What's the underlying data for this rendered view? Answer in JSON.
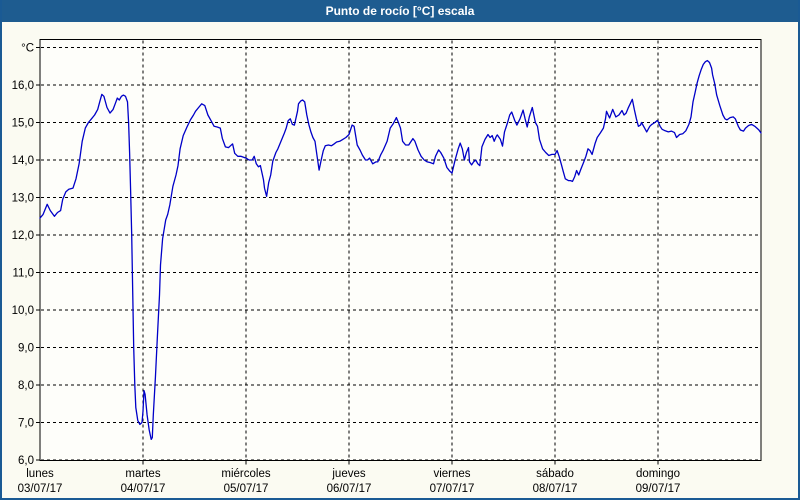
{
  "window": {
    "title": "Punto de rocío [°C] escala"
  },
  "colors": {
    "titlebar_bg": "#1e5c90",
    "frame_border": "#1a5a94",
    "chart_bg": "#fbfbf2",
    "plot_bg": "#fefefa",
    "grid": "#000000",
    "series_line": "#0000c8",
    "title_text": "#ffffff",
    "label_text": "#000000"
  },
  "chart_data": {
    "type": "line",
    "title": "Punto de rocío [°C] escala",
    "grid": "dashed",
    "legend": "none",
    "y_axis": {
      "unit_label": "°C",
      "min": 6.0,
      "max": 17.0,
      "tick_step": 1.0,
      "tick_labels": [
        "6,0",
        "7,0",
        "8,0",
        "9,0",
        "10,0",
        "11,0",
        "12,0",
        "13,0",
        "14,0",
        "15,0",
        "16,0",
        "°C"
      ]
    },
    "x_axis": {
      "unit": "days",
      "range_days": [
        0,
        7
      ],
      "day_labels": [
        {
          "name": "lunes",
          "date": "03/07/17"
        },
        {
          "name": "martes",
          "date": "04/07/17"
        },
        {
          "name": "miércoles",
          "date": "05/07/17"
        },
        {
          "name": "jueves",
          "date": "06/07/17"
        },
        {
          "name": "viernes",
          "date": "07/07/17"
        },
        {
          "name": "sábado",
          "date": "08/07/17"
        },
        {
          "name": "domingo",
          "date": "09/07/17"
        }
      ]
    },
    "series": [
      {
        "name": "Punto de rocío",
        "color": "#0000c8",
        "points": [
          [
            0,
            12.45
          ],
          [
            0.03,
            12.55
          ],
          [
            0.07,
            12.82
          ],
          [
            0.1,
            12.65
          ],
          [
            0.14,
            12.5
          ],
          [
            0.17,
            12.6
          ],
          [
            0.2,
            12.65
          ],
          [
            0.22,
            12.95
          ],
          [
            0.25,
            13.15
          ],
          [
            0.28,
            13.22
          ],
          [
            0.32,
            13.25
          ],
          [
            0.35,
            13.5
          ],
          [
            0.38,
            13.9
          ],
          [
            0.41,
            14.5
          ],
          [
            0.44,
            14.85
          ],
          [
            0.47,
            15.0
          ],
          [
            0.5,
            15.1
          ],
          [
            0.53,
            15.2
          ],
          [
            0.56,
            15.35
          ],
          [
            0.58,
            15.55
          ],
          [
            0.6,
            15.75
          ],
          [
            0.62,
            15.7
          ],
          [
            0.65,
            15.4
          ],
          [
            0.68,
            15.25
          ],
          [
            0.71,
            15.35
          ],
          [
            0.73,
            15.5
          ],
          [
            0.75,
            15.65
          ],
          [
            0.77,
            15.6
          ],
          [
            0.79,
            15.7
          ],
          [
            0.81,
            15.73
          ],
          [
            0.83,
            15.7
          ],
          [
            0.85,
            15.55
          ],
          [
            0.86,
            15.0
          ],
          [
            0.87,
            14.2
          ],
          [
            0.88,
            13.2
          ],
          [
            0.89,
            12.0
          ],
          [
            0.9,
            10.5
          ],
          [
            0.91,
            9.0
          ],
          [
            0.92,
            8.0
          ],
          [
            0.93,
            7.4
          ],
          [
            0.95,
            7.05
          ],
          [
            0.97,
            6.95
          ],
          [
            0.99,
            7.0
          ],
          [
            1.0,
            7.3
          ],
          [
            1.01,
            7.85
          ],
          [
            1.02,
            7.75
          ],
          [
            1.04,
            7.2
          ],
          [
            1.06,
            6.8
          ],
          [
            1.08,
            6.55
          ],
          [
            1.09,
            6.6
          ],
          [
            1.1,
            7.2
          ],
          [
            1.12,
            8.2
          ],
          [
            1.14,
            9.3
          ],
          [
            1.16,
            10.4
          ],
          [
            1.17,
            11.2
          ],
          [
            1.19,
            11.9
          ],
          [
            1.22,
            12.4
          ],
          [
            1.24,
            12.55
          ],
          [
            1.26,
            12.8
          ],
          [
            1.29,
            13.3
          ],
          [
            1.32,
            13.6
          ],
          [
            1.34,
            13.85
          ],
          [
            1.36,
            14.3
          ],
          [
            1.39,
            14.65
          ],
          [
            1.43,
            14.9
          ],
          [
            1.46,
            15.07
          ],
          [
            1.49,
            15.2
          ],
          [
            1.51,
            15.3
          ],
          [
            1.54,
            15.4
          ],
          [
            1.57,
            15.5
          ],
          [
            1.6,
            15.45
          ],
          [
            1.63,
            15.2
          ],
          [
            1.66,
            15.05
          ],
          [
            1.69,
            14.9
          ],
          [
            1.72,
            14.88
          ],
          [
            1.75,
            14.85
          ],
          [
            1.77,
            14.58
          ],
          [
            1.8,
            14.35
          ],
          [
            1.83,
            14.33
          ],
          [
            1.85,
            14.38
          ],
          [
            1.87,
            14.43
          ],
          [
            1.89,
            14.18
          ],
          [
            1.92,
            14.1
          ],
          [
            1.95,
            14.1
          ],
          [
            1.98,
            14.07
          ],
          [
            2.0,
            14.05
          ],
          [
            2.03,
            14.0
          ],
          [
            2.06,
            14.0
          ],
          [
            2.08,
            14.1
          ],
          [
            2.1,
            13.9
          ],
          [
            2.12,
            13.82
          ],
          [
            2.14,
            13.85
          ],
          [
            2.17,
            13.47
          ],
          [
            2.18,
            13.25
          ],
          [
            2.2,
            13.03
          ],
          [
            2.22,
            13.4
          ],
          [
            2.24,
            13.6
          ],
          [
            2.26,
            13.97
          ],
          [
            2.29,
            14.2
          ],
          [
            2.31,
            14.3
          ],
          [
            2.34,
            14.5
          ],
          [
            2.37,
            14.7
          ],
          [
            2.39,
            14.85
          ],
          [
            2.41,
            15.05
          ],
          [
            2.43,
            15.1
          ],
          [
            2.45,
            14.95
          ],
          [
            2.47,
            14.93
          ],
          [
            2.5,
            15.3
          ],
          [
            2.51,
            15.5
          ],
          [
            2.53,
            15.57
          ],
          [
            2.55,
            15.6
          ],
          [
            2.57,
            15.55
          ],
          [
            2.59,
            15.2
          ],
          [
            2.61,
            14.95
          ],
          [
            2.63,
            14.75
          ],
          [
            2.65,
            14.6
          ],
          [
            2.67,
            14.5
          ],
          [
            2.69,
            14.1
          ],
          [
            2.71,
            13.73
          ],
          [
            2.73,
            14.0
          ],
          [
            2.75,
            14.25
          ],
          [
            2.77,
            14.38
          ],
          [
            2.8,
            14.4
          ],
          [
            2.83,
            14.38
          ],
          [
            2.85,
            14.42
          ],
          [
            2.88,
            14.48
          ],
          [
            2.91,
            14.5
          ],
          [
            2.94,
            14.55
          ],
          [
            2.97,
            14.6
          ],
          [
            3.0,
            14.68
          ],
          [
            3.03,
            14.93
          ],
          [
            3.05,
            14.9
          ],
          [
            3.08,
            14.4
          ],
          [
            3.11,
            14.25
          ],
          [
            3.13,
            14.13
          ],
          [
            3.16,
            14.0
          ],
          [
            3.18,
            14.0
          ],
          [
            3.2,
            14.05
          ],
          [
            3.23,
            13.9
          ],
          [
            3.26,
            13.95
          ],
          [
            3.28,
            13.95
          ],
          [
            3.31,
            14.15
          ],
          [
            3.33,
            14.25
          ],
          [
            3.37,
            14.5
          ],
          [
            3.4,
            14.85
          ],
          [
            3.43,
            14.97
          ],
          [
            3.46,
            15.13
          ],
          [
            3.48,
            15.0
          ],
          [
            3.5,
            14.85
          ],
          [
            3.52,
            14.5
          ],
          [
            3.55,
            14.4
          ],
          [
            3.58,
            14.4
          ],
          [
            3.62,
            14.57
          ],
          [
            3.64,
            14.5
          ],
          [
            3.67,
            14.27
          ],
          [
            3.7,
            14.1
          ],
          [
            3.73,
            14.0
          ],
          [
            3.76,
            13.95
          ],
          [
            3.79,
            13.93
          ],
          [
            3.82,
            13.9
          ],
          [
            3.84,
            14.1
          ],
          [
            3.87,
            14.27
          ],
          [
            3.89,
            14.2
          ],
          [
            3.92,
            14.05
          ],
          [
            3.95,
            13.8
          ],
          [
            3.98,
            13.7
          ],
          [
            4.0,
            13.65
          ],
          [
            4.03,
            14.0
          ],
          [
            4.06,
            14.3
          ],
          [
            4.08,
            14.45
          ],
          [
            4.1,
            14.3
          ],
          [
            4.12,
            14.0
          ],
          [
            4.14,
            14.2
          ],
          [
            4.16,
            14.33
          ],
          [
            4.17,
            13.95
          ],
          [
            4.19,
            13.87
          ],
          [
            4.21,
            13.95
          ],
          [
            4.23,
            14.0
          ],
          [
            4.25,
            13.9
          ],
          [
            4.27,
            13.85
          ],
          [
            4.29,
            14.35
          ],
          [
            4.32,
            14.55
          ],
          [
            4.35,
            14.68
          ],
          [
            4.37,
            14.6
          ],
          [
            4.39,
            14.65
          ],
          [
            4.41,
            14.5
          ],
          [
            4.43,
            14.63
          ],
          [
            4.44,
            14.67
          ],
          [
            4.47,
            14.55
          ],
          [
            4.49,
            14.37
          ],
          [
            4.51,
            14.75
          ],
          [
            4.54,
            15.0
          ],
          [
            4.56,
            15.2
          ],
          [
            4.58,
            15.28
          ],
          [
            4.61,
            15.05
          ],
          [
            4.63,
            14.93
          ],
          [
            4.66,
            15.1
          ],
          [
            4.69,
            15.33
          ],
          [
            4.71,
            15.1
          ],
          [
            4.73,
            14.88
          ],
          [
            4.75,
            15.15
          ],
          [
            4.78,
            15.4
          ],
          [
            4.81,
            15.0
          ],
          [
            4.83,
            14.9
          ],
          [
            4.85,
            14.55
          ],
          [
            4.88,
            14.3
          ],
          [
            4.91,
            14.2
          ],
          [
            4.94,
            14.12
          ],
          [
            4.97,
            14.15
          ],
          [
            5.0,
            14.15
          ],
          [
            5.02,
            14.25
          ],
          [
            5.04,
            14.1
          ],
          [
            5.06,
            13.9
          ],
          [
            5.08,
            13.7
          ],
          [
            5.1,
            13.5
          ],
          [
            5.13,
            13.45
          ],
          [
            5.15,
            13.45
          ],
          [
            5.17,
            13.43
          ],
          [
            5.19,
            13.55
          ],
          [
            5.21,
            13.72
          ],
          [
            5.23,
            13.6
          ],
          [
            5.25,
            13.75
          ],
          [
            5.28,
            13.95
          ],
          [
            5.3,
            14.1
          ],
          [
            5.32,
            14.3
          ],
          [
            5.34,
            14.25
          ],
          [
            5.36,
            14.15
          ],
          [
            5.39,
            14.45
          ],
          [
            5.41,
            14.6
          ],
          [
            5.44,
            14.72
          ],
          [
            5.47,
            14.85
          ],
          [
            5.49,
            15.1
          ],
          [
            5.5,
            15.3
          ],
          [
            5.53,
            15.12
          ],
          [
            5.56,
            15.35
          ],
          [
            5.59,
            15.15
          ],
          [
            5.62,
            15.2
          ],
          [
            5.65,
            15.32
          ],
          [
            5.67,
            15.2
          ],
          [
            5.69,
            15.25
          ],
          [
            5.71,
            15.38
          ],
          [
            5.73,
            15.5
          ],
          [
            5.75,
            15.62
          ],
          [
            5.77,
            15.35
          ],
          [
            5.79,
            15.1
          ],
          [
            5.81,
            14.9
          ],
          [
            5.83,
            14.93
          ],
          [
            5.84,
            15.0
          ],
          [
            5.87,
            14.85
          ],
          [
            5.89,
            14.75
          ],
          [
            5.92,
            14.9
          ],
          [
            5.94,
            14.95
          ],
          [
            5.97,
            15.0
          ],
          [
            5.99,
            15.05
          ],
          [
            6.0,
            15.03
          ],
          [
            6.02,
            14.9
          ],
          [
            6.04,
            14.82
          ],
          [
            6.07,
            14.78
          ],
          [
            6.1,
            14.75
          ],
          [
            6.13,
            14.77
          ],
          [
            6.16,
            14.73
          ],
          [
            6.18,
            14.6
          ],
          [
            6.21,
            14.68
          ],
          [
            6.24,
            14.7
          ],
          [
            6.27,
            14.78
          ],
          [
            6.3,
            14.95
          ],
          [
            6.32,
            15.15
          ],
          [
            6.34,
            15.55
          ],
          [
            6.36,
            15.8
          ],
          [
            6.38,
            16.05
          ],
          [
            6.4,
            16.25
          ],
          [
            6.42,
            16.42
          ],
          [
            6.44,
            16.55
          ],
          [
            6.46,
            16.62
          ],
          [
            6.48,
            16.65
          ],
          [
            6.5,
            16.6
          ],
          [
            6.52,
            16.45
          ],
          [
            6.53,
            16.27
          ],
          [
            6.55,
            16.05
          ],
          [
            6.57,
            15.73
          ],
          [
            6.6,
            15.45
          ],
          [
            6.63,
            15.2
          ],
          [
            6.65,
            15.1
          ],
          [
            6.67,
            15.07
          ],
          [
            6.7,
            15.13
          ],
          [
            6.73,
            15.15
          ],
          [
            6.75,
            15.1
          ],
          [
            6.78,
            14.9
          ],
          [
            6.8,
            14.8
          ],
          [
            6.83,
            14.77
          ],
          [
            6.85,
            14.85
          ],
          [
            6.88,
            14.92
          ],
          [
            6.91,
            14.95
          ],
          [
            6.94,
            14.9
          ],
          [
            6.96,
            14.85
          ],
          [
            6.98,
            14.8
          ],
          [
            7.0,
            14.72
          ]
        ]
      }
    ]
  }
}
